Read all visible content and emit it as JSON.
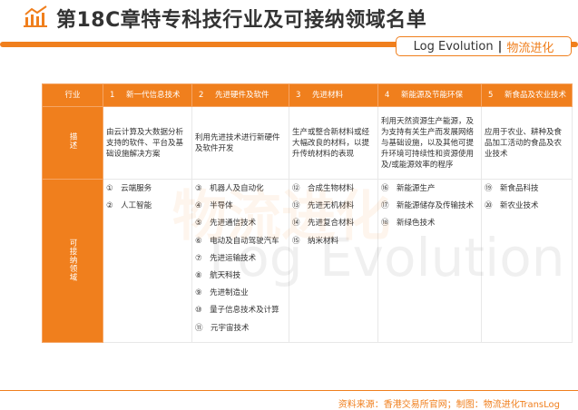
{
  "header": {
    "title": "第18C章特专科技行业及可接纳领域名单",
    "logo_en": "Log Evolution",
    "logo_sep": "|",
    "logo_cn": "物流进化",
    "watermark_cn": "物流进化",
    "watermark_en": "Log Evolution"
  },
  "table": {
    "row_labels": {
      "industry": "行业",
      "description": "描述",
      "domains": "可接纳领域"
    },
    "columns": [
      {
        "num": "1",
        "name": "新一代信息技术",
        "description": "由云计算及大数据分析支持的软件、平台及基础设施解决方案",
        "items": [
          "①　云端服务",
          "②　人工智能"
        ]
      },
      {
        "num": "2",
        "name": "先进硬件及软件",
        "description": "利用先进技术进行新硬件及软件开发",
        "items": [
          "③　机器人及自动化",
          "④　半导体",
          "⑤　先进通信技术",
          "⑥　电动及自动驾驶汽车",
          "⑦　先进运输技术",
          "⑧　航天科技",
          "⑨　先进制造业",
          "⑩　量子信息技术及计算",
          "⑪　元宇宙技术"
        ]
      },
      {
        "num": "3",
        "name": "先进材料",
        "description": "生产或整合新材料或经大幅改良的材料，以提升传统材料的表现",
        "items": [
          "⑫　合成生物材料",
          "⑬　先进无机材料",
          "⑭　先进复合材料",
          "⑮　纳米材料"
        ]
      },
      {
        "num": "4",
        "name": "新能源及节能环保",
        "description": "利用天然资源生产能源，及为支持有关生产而发展网络与基础设施，以及其他可提升环境可持续性和资源使用及/或能源效率的程序",
        "items": [
          "⑯　新能源生产",
          "⑰　新能源储存及传输技术",
          "⑱　新绿色技术"
        ]
      },
      {
        "num": "5",
        "name": "新食品及农业技术",
        "description": "应用于农业、耕种及食品加工活动的食品及农业技术",
        "items": [
          "⑲　新食品科技",
          "⑳　新农业技术"
        ]
      }
    ]
  },
  "footer": {
    "source": "资料来源：香港交易所官网；制图：物流进化TransLog"
  },
  "colors": {
    "accent": "#f07f1d"
  }
}
